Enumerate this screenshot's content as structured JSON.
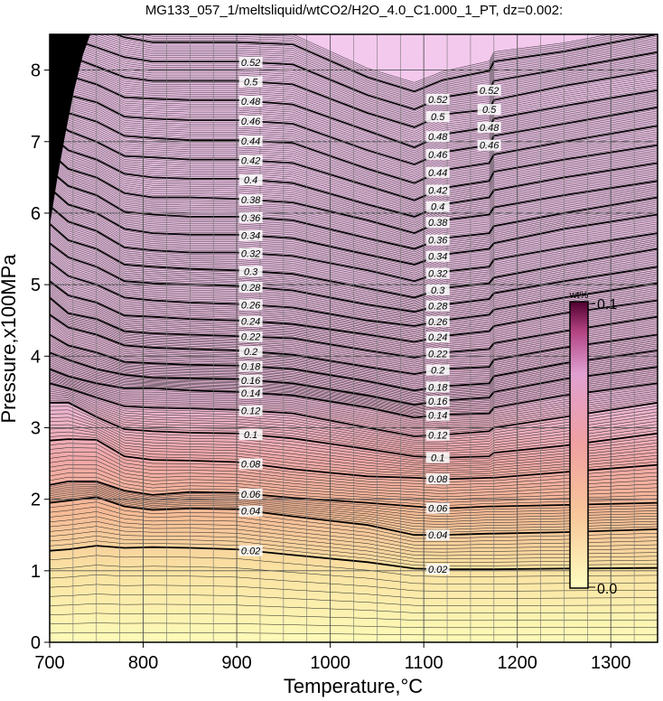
{
  "chart_data": {
    "type": "heatmap",
    "title": "MG133_057_1/meltsliquid/wtCO2/H2O_4.0_C1.000_1_PT, dz=0.002:",
    "xlabel": "Temperature,°C",
    "ylabel": "Pressure,x100MPa",
    "xlim": [
      700,
      1350
    ],
    "ylim": [
      0,
      8.5
    ],
    "x_ticks": [
      "700",
      "800",
      "900",
      "1000",
      "1100",
      "1200",
      "1300"
    ],
    "y_ticks": [
      "0",
      "1",
      "2",
      "3",
      "4",
      "5",
      "6",
      "7",
      "8"
    ],
    "grid": true,
    "colorbar": {
      "unit": "wt%",
      "min_label": "0.0",
      "max_label": "0.1",
      "min": 0.0,
      "max": 0.1,
      "colors": [
        "#fefec0",
        "#f8c89a",
        "#f0a0a0",
        "#e0a0d0",
        "#b04080",
        "#500030"
      ],
      "placement": "right-middle"
    },
    "contour_step": 0.002,
    "contour_label_step": 0.02,
    "contour_labels": [
      "0.02",
      "0.04",
      "0.06",
      "0.08",
      "0.1",
      "0.12",
      "0.14",
      "0.16",
      "0.18",
      "0.2",
      "0.22",
      "0.24",
      "0.26",
      "0.28",
      "0.3",
      "0.32",
      "0.34",
      "0.36",
      "0.38",
      "0.4",
      "0.42",
      "0.44",
      "0.46",
      "0.48",
      "0.5",
      "0.52"
    ],
    "profile_temperatures": [
      700,
      720,
      750,
      780,
      810,
      850,
      900,
      960,
      1040,
      1090,
      1120,
      1170,
      1175,
      1250,
      1350
    ],
    "contour_pressure_profiles": [
      {
        "value": 0.02,
        "p": [
          1.28,
          1.3,
          1.35,
          1.32,
          1.33,
          1.32,
          1.3,
          1.22,
          1.12,
          1.03,
          1.02,
          1.02,
          1.02,
          1.03,
          1.04
        ]
      },
      {
        "value": 0.04,
        "p": [
          1.95,
          1.98,
          2.03,
          1.9,
          1.85,
          1.87,
          1.86,
          1.76,
          1.64,
          1.5,
          1.5,
          1.52,
          1.52,
          1.54,
          1.58
        ]
      },
      {
        "value": 0.06,
        "p": [
          2.2,
          2.25,
          2.25,
          2.12,
          2.06,
          2.1,
          2.09,
          2.02,
          1.95,
          1.9,
          1.87,
          1.9,
          1.9,
          1.92,
          1.95
        ]
      },
      {
        "value": 0.08,
        "p": [
          2.82,
          2.84,
          2.83,
          2.6,
          2.55,
          2.54,
          2.52,
          2.42,
          2.32,
          2.3,
          2.28,
          2.3,
          2.3,
          2.38,
          2.48
        ]
      },
      {
        "value": 0.1,
        "p": [
          3.35,
          3.35,
          3.15,
          2.98,
          2.95,
          2.93,
          2.92,
          2.85,
          2.7,
          2.6,
          2.58,
          2.6,
          2.65,
          2.75,
          2.92
        ]
      },
      {
        "value": 0.12,
        "p": [
          3.62,
          3.55,
          3.42,
          3.3,
          3.28,
          3.27,
          3.25,
          3.2,
          3.0,
          2.88,
          2.9,
          2.95,
          3.0,
          3.15,
          3.35
        ]
      },
      {
        "value": 0.14,
        "p": [
          3.82,
          3.72,
          3.62,
          3.55,
          3.55,
          3.52,
          3.5,
          3.45,
          3.28,
          3.14,
          3.18,
          3.2,
          3.28,
          3.45,
          3.62
        ]
      },
      {
        "value": 0.16,
        "p": [
          4.05,
          3.95,
          3.82,
          3.74,
          3.7,
          3.69,
          3.68,
          3.62,
          3.45,
          3.32,
          3.38,
          3.42,
          3.5,
          3.68,
          3.85
        ]
      },
      {
        "value": 0.18,
        "p": [
          4.3,
          4.15,
          4.05,
          3.92,
          3.9,
          3.88,
          3.87,
          3.82,
          3.65,
          3.52,
          3.58,
          3.62,
          3.72,
          3.9,
          4.08
        ]
      },
      {
        "value": 0.2,
        "p": [
          4.58,
          4.4,
          4.3,
          4.15,
          4.12,
          4.1,
          4.08,
          4.02,
          3.85,
          3.75,
          3.82,
          3.85,
          3.95,
          4.12,
          4.3
        ]
      },
      {
        "value": 0.22,
        "p": [
          4.82,
          4.6,
          4.52,
          4.35,
          4.32,
          4.3,
          4.28,
          4.25,
          4.08,
          3.98,
          4.05,
          4.1,
          4.18,
          4.35,
          4.55
        ]
      },
      {
        "value": 0.24,
        "p": [
          5.05,
          4.85,
          4.75,
          4.57,
          4.55,
          4.52,
          4.5,
          4.45,
          4.3,
          4.2,
          4.28,
          4.35,
          4.42,
          4.6,
          4.78
        ]
      },
      {
        "value": 0.26,
        "p": [
          5.32,
          5.12,
          5.0,
          4.82,
          4.78,
          4.75,
          4.73,
          4.68,
          4.5,
          4.42,
          4.5,
          4.58,
          4.65,
          4.82,
          5.02
        ]
      },
      {
        "value": 0.28,
        "p": [
          5.58,
          5.38,
          5.25,
          5.05,
          5.02,
          5.0,
          4.98,
          4.92,
          4.72,
          4.62,
          4.72,
          4.8,
          4.88,
          5.05,
          5.25
        ]
      },
      {
        "value": 0.3,
        "p": [
          5.85,
          5.62,
          5.5,
          5.28,
          5.25,
          5.22,
          5.2,
          5.15,
          4.95,
          4.82,
          4.95,
          5.02,
          5.1,
          5.28,
          5.5
        ]
      },
      {
        "value": 0.32,
        "p": [
          6.1,
          5.88,
          5.75,
          5.52,
          5.48,
          5.45,
          5.45,
          5.4,
          5.2,
          5.05,
          5.18,
          5.25,
          5.35,
          5.52,
          5.72
        ]
      },
      {
        "value": 0.34,
        "p": [
          6.35,
          6.12,
          6.0,
          5.78,
          5.72,
          5.7,
          5.7,
          5.65,
          5.42,
          5.28,
          5.42,
          5.5,
          5.58,
          5.78,
          5.98
        ]
      },
      {
        "value": 0.36,
        "p": [
          6.6,
          6.38,
          6.25,
          6.02,
          5.98,
          5.95,
          5.95,
          5.9,
          5.65,
          5.5,
          5.65,
          5.72,
          5.82,
          6.0,
          6.22
        ]
      },
      {
        "value": 0.38,
        "p": [
          6.85,
          6.62,
          6.5,
          6.28,
          6.22,
          6.22,
          6.2,
          6.15,
          5.9,
          5.72,
          5.9,
          5.98,
          6.08,
          6.25,
          6.45
        ]
      },
      {
        "value": 0.4,
        "p": [
          7.1,
          6.88,
          6.75,
          6.55,
          6.5,
          6.48,
          6.48,
          6.42,
          6.12,
          5.95,
          6.12,
          6.22,
          6.32,
          6.5,
          6.7
        ]
      },
      {
        "value": 0.42,
        "p": [
          7.35,
          7.15,
          7.0,
          6.8,
          6.78,
          6.75,
          6.75,
          6.7,
          6.38,
          6.18,
          6.35,
          6.45,
          6.58,
          6.75,
          6.95
        ]
      },
      {
        "value": 0.44,
        "p": [
          7.6,
          7.4,
          7.28,
          7.08,
          7.05,
          7.02,
          7.02,
          6.98,
          6.62,
          6.42,
          6.6,
          6.7,
          6.82,
          7.0,
          7.22
        ]
      },
      {
        "value": 0.46,
        "p": [
          7.88,
          7.65,
          7.55,
          7.35,
          7.32,
          7.3,
          7.3,
          7.25,
          6.88,
          6.68,
          6.85,
          6.95,
          7.08,
          7.25,
          7.48
        ]
      },
      {
        "value": 0.48,
        "p": [
          8.12,
          7.92,
          7.8,
          7.62,
          7.6,
          7.58,
          7.58,
          7.52,
          7.15,
          6.92,
          7.1,
          7.2,
          7.32,
          7.5,
          7.72
        ]
      },
      {
        "value": 0.5,
        "p": [
          8.4,
          8.2,
          8.05,
          7.9,
          7.85,
          7.85,
          7.85,
          7.8,
          7.4,
          7.2,
          7.38,
          7.45,
          7.58,
          7.78,
          8.0
        ]
      },
      {
        "value": 0.52,
        "p": [
          8.65,
          8.45,
          8.32,
          8.18,
          8.12,
          8.12,
          8.12,
          8.08,
          7.65,
          7.45,
          7.62,
          7.72,
          7.85,
          8.02,
          8.25
        ]
      }
    ],
    "label_positions_T": [
      915,
      1115,
      1170
    ]
  }
}
